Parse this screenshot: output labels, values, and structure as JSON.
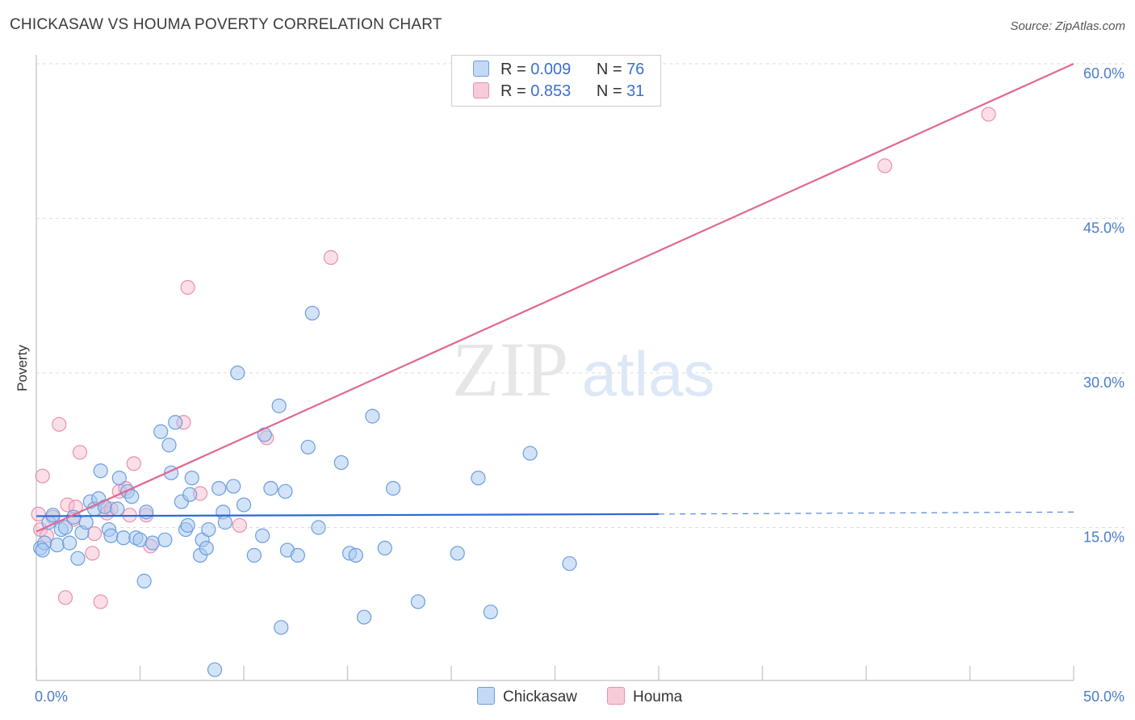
{
  "header": {
    "title": "CHICKASAW VS HOUMA POVERTY CORRELATION CHART",
    "source": "Source: ZipAtlas.com"
  },
  "watermark": {
    "zip": "ZIP",
    "atlas": "atlas"
  },
  "legend": {
    "rows": [
      {
        "r_label": "R =",
        "r_value": "0.009",
        "n_label": "N =",
        "n_value": "76"
      },
      {
        "r_label": "R =",
        "r_value": "0.853",
        "n_label": "N =",
        "n_value": "31"
      }
    ]
  },
  "bottom_legend": {
    "chickasaw": "Chickasaw",
    "houma": "Houma"
  },
  "colors": {
    "chickasaw_fill": "#a8c8f0",
    "chickasaw_stroke": "#6a9ee0",
    "chickasaw_line": "#2a6ad0",
    "houma_fill": "#f6b8cc",
    "houma_stroke": "#e890ad",
    "houma_line": "#e06890",
    "tick_label": "#4a7cc9",
    "grid": "#dddddd"
  },
  "chart_data": {
    "type": "scatter",
    "title": "CHICKASAW VS HOUMA POVERTY CORRELATION CHART",
    "xlabel": "",
    "ylabel": "Poverty",
    "xlim": [
      0,
      50
    ],
    "ylim": [
      0,
      60
    ],
    "x_tick_labels": [
      "0.0%",
      "50.0%"
    ],
    "y_ticks": [
      15,
      30,
      45,
      60
    ],
    "y_tick_labels": [
      "15.0%",
      "30.0%",
      "45.0%",
      "60.0%"
    ],
    "grid": "horizontal dashed",
    "legend_position": "top-center",
    "series": [
      {
        "name": "Chickasaw",
        "r": 0.009,
        "n": 76,
        "trend": {
          "x": [
            0,
            30,
            50
          ],
          "y": [
            16.1,
            16.3,
            16.5
          ],
          "solid_until": 30
        },
        "points": [
          [
            0.2,
            13.0
          ],
          [
            0.4,
            13.5
          ],
          [
            0.6,
            15.5
          ],
          [
            0.8,
            16.2
          ],
          [
            1.0,
            13.3
          ],
          [
            1.2,
            14.8
          ],
          [
            1.4,
            15.0
          ],
          [
            1.6,
            13.5
          ],
          [
            1.8,
            16.0
          ],
          [
            2.0,
            12.0
          ],
          [
            2.2,
            14.5
          ],
          [
            2.4,
            15.5
          ],
          [
            2.6,
            17.5
          ],
          [
            2.8,
            16.8
          ],
          [
            3.0,
            17.8
          ],
          [
            3.1,
            20.5
          ],
          [
            3.3,
            17.0
          ],
          [
            3.5,
            14.8
          ],
          [
            3.6,
            14.2
          ],
          [
            3.9,
            16.8
          ],
          [
            4.0,
            19.8
          ],
          [
            4.2,
            14.0
          ],
          [
            4.4,
            18.5
          ],
          [
            4.6,
            18.0
          ],
          [
            4.8,
            14.0
          ],
          [
            5.0,
            13.8
          ],
          [
            5.2,
            9.8
          ],
          [
            5.3,
            16.5
          ],
          [
            5.6,
            13.5
          ],
          [
            6.0,
            24.3
          ],
          [
            6.2,
            13.8
          ],
          [
            6.4,
            23.0
          ],
          [
            6.5,
            20.3
          ],
          [
            6.7,
            25.2
          ],
          [
            7.0,
            17.5
          ],
          [
            7.2,
            14.8
          ],
          [
            7.3,
            15.2
          ],
          [
            7.4,
            18.2
          ],
          [
            7.5,
            19.8
          ],
          [
            7.9,
            12.3
          ],
          [
            8.0,
            13.8
          ],
          [
            8.2,
            13.0
          ],
          [
            8.3,
            14.8
          ],
          [
            8.6,
            1.2
          ],
          [
            8.8,
            18.8
          ],
          [
            9.0,
            16.5
          ],
          [
            9.1,
            15.5
          ],
          [
            9.5,
            19.0
          ],
          [
            9.7,
            30.0
          ],
          [
            10.0,
            17.2
          ],
          [
            10.5,
            12.3
          ],
          [
            10.9,
            14.2
          ],
          [
            11.0,
            24.0
          ],
          [
            11.3,
            18.8
          ],
          [
            11.7,
            26.8
          ],
          [
            11.8,
            5.3
          ],
          [
            12.0,
            18.5
          ],
          [
            12.1,
            12.8
          ],
          [
            12.6,
            12.3
          ],
          [
            13.3,
            35.8
          ],
          [
            13.1,
            22.8
          ],
          [
            13.6,
            15.0
          ],
          [
            14.7,
            21.3
          ],
          [
            15.1,
            12.5
          ],
          [
            15.4,
            12.3
          ],
          [
            15.8,
            6.3
          ],
          [
            16.2,
            25.8
          ],
          [
            16.8,
            13.0
          ],
          [
            17.2,
            18.8
          ],
          [
            18.4,
            7.8
          ],
          [
            20.3,
            12.5
          ],
          [
            21.3,
            19.8
          ],
          [
            21.9,
            6.8
          ],
          [
            23.8,
            22.2
          ],
          [
            25.7,
            11.5
          ],
          [
            0.3,
            12.8
          ]
        ]
      },
      {
        "name": "Houma",
        "r": 0.853,
        "n": 31,
        "trend": {
          "x": [
            0,
            50
          ],
          "y": [
            14.6,
            60.0
          ]
        },
        "points": [
          [
            0.1,
            16.3
          ],
          [
            0.2,
            14.8
          ],
          [
            0.3,
            20.0
          ],
          [
            0.5,
            14.2
          ],
          [
            0.8,
            16.0
          ],
          [
            1.1,
            25.0
          ],
          [
            1.4,
            8.2
          ],
          [
            1.5,
            17.2
          ],
          [
            1.8,
            15.8
          ],
          [
            1.9,
            17.0
          ],
          [
            2.1,
            22.3
          ],
          [
            2.7,
            12.5
          ],
          [
            2.8,
            14.4
          ],
          [
            3.1,
            7.8
          ],
          [
            3.3,
            17.0
          ],
          [
            3.4,
            16.4
          ],
          [
            3.6,
            16.8
          ],
          [
            4.0,
            18.5
          ],
          [
            4.3,
            18.8
          ],
          [
            4.5,
            16.2
          ],
          [
            4.7,
            21.2
          ],
          [
            5.3,
            16.2
          ],
          [
            5.5,
            13.2
          ],
          [
            7.1,
            25.2
          ],
          [
            7.3,
            38.3
          ],
          [
            7.9,
            18.3
          ],
          [
            9.8,
            15.2
          ],
          [
            11.1,
            23.7
          ],
          [
            14.2,
            41.2
          ],
          [
            40.9,
            50.1
          ],
          [
            45.9,
            55.1
          ]
        ]
      }
    ]
  }
}
